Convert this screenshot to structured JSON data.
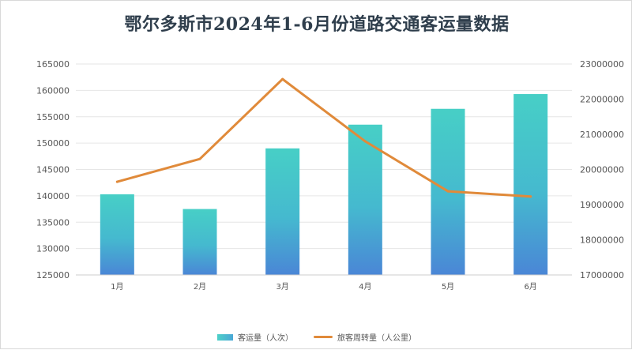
{
  "chart_data": {
    "type": "bar",
    "title": "鄂尔多斯市2024年1-6月份道路交通客运量数据",
    "categories": [
      "1月",
      "2月",
      "3月",
      "4月",
      "5月",
      "6月"
    ],
    "series": [
      {
        "name": "客运量（人次）",
        "type": "bar",
        "axis": "left",
        "values": [
          140300,
          137500,
          149000,
          153500,
          156500,
          159300
        ],
        "color": "#45c9c4"
      },
      {
        "name": "旅客周转量（人公里）",
        "type": "line",
        "axis": "right",
        "values": [
          19650000,
          20300000,
          22570000,
          20800000,
          19380000,
          19230000
        ],
        "color": "#e08a3a"
      }
    ],
    "ylim_left": [
      125000,
      165000
    ],
    "ylim_right": [
      17000000,
      23000000
    ],
    "yticks_left": [
      "125000",
      "130000",
      "135000",
      "140000",
      "145000",
      "150000",
      "155000",
      "160000",
      "165000"
    ],
    "yticks_right": [
      "17000000",
      "18000000",
      "19000000",
      "20000000",
      "21000000",
      "22000000",
      "23000000"
    ],
    "grid": true,
    "legend_position": "bottom"
  }
}
